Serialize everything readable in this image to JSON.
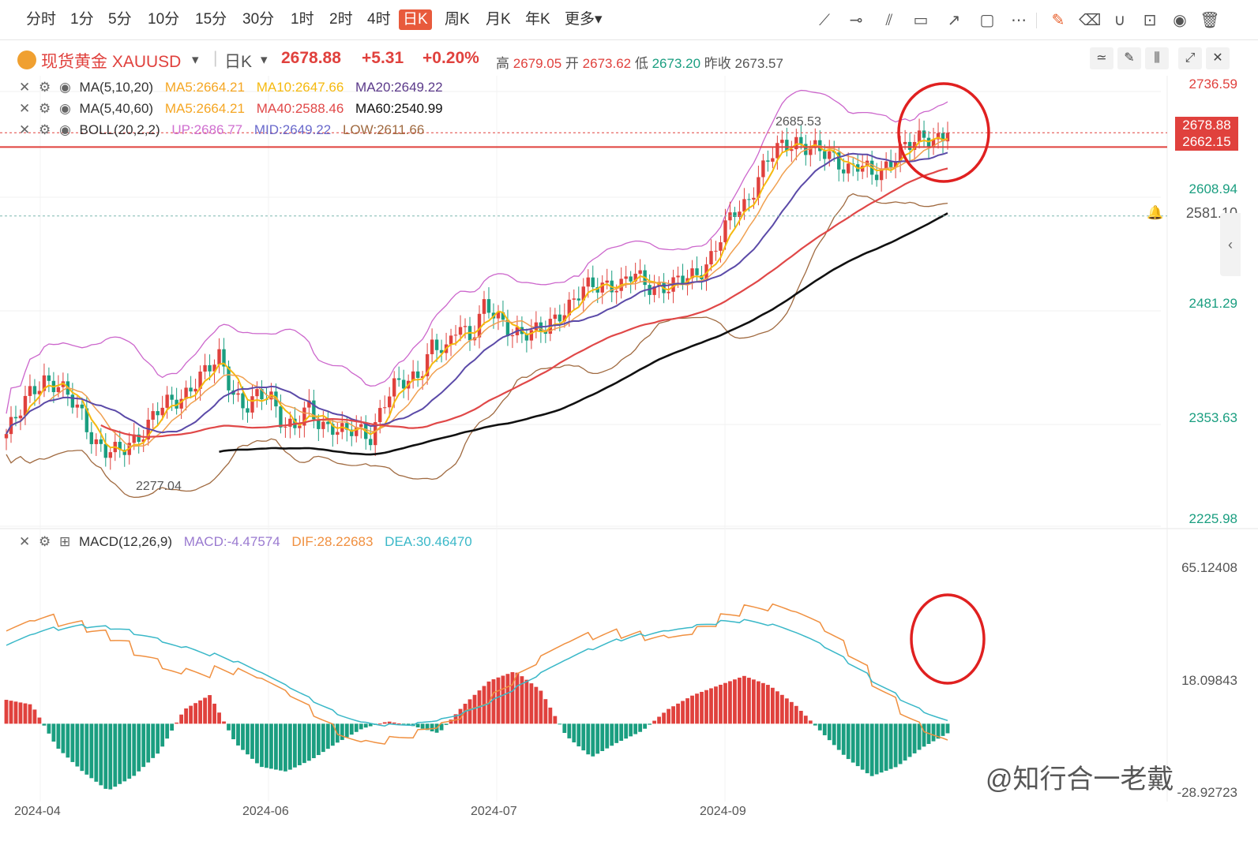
{
  "toolbar": {
    "timeframes": [
      "分时",
      "1分",
      "5分",
      "10分",
      "15分",
      "30分",
      "1时",
      "2时",
      "4时",
      "日K",
      "周K",
      "月K",
      "年K",
      "更多▾"
    ],
    "active_index": 9,
    "tools": [
      "trend-line-icon",
      "horizontal-line-icon",
      "parallel-line-icon",
      "rectangle-icon",
      "arrow-icon",
      "comment-icon",
      "more-dots-icon",
      "edit-icon",
      "eraser-icon",
      "magnet-icon",
      "lock-icon",
      "eye-icon",
      "trash-icon"
    ]
  },
  "symbol": {
    "name": "现货黄金 XAUUSD",
    "period": "日K",
    "price": "2678.88",
    "change": "+5.31",
    "change_pct": "+0.20%",
    "high_label": "高",
    "high": "2679.05",
    "open_label": "开",
    "open": "2673.62",
    "low_label": "低",
    "low": "2673.20",
    "prev_label": "昨收",
    "prev": "2673.57"
  },
  "indicators": {
    "ma1": {
      "name": "MA(5,10,20)",
      "v1": "MA5:2664.21",
      "v2": "MA10:2647.66",
      "v3": "MA20:2649.22"
    },
    "ma2": {
      "name": "MA(5,40,60)",
      "v1": "MA5:2664.21",
      "v2": "MA40:2588.46",
      "v3": "MA60:2540.99"
    },
    "boll": {
      "name": "BOLL(20,2,2)",
      "v1": "UP:2686.77",
      "v2": "MID:2649.22",
      "v3": "LOW:2611.66"
    },
    "macd": {
      "name": "MACD(12,26,9)",
      "v1": "MACD:-4.47574",
      "v2": "DIF:28.22683",
      "v3": "DEA:30.46470"
    }
  },
  "price_axis": [
    "2736.59",
    "2608.94",
    "2481.29",
    "2353.63",
    "2225.98"
  ],
  "price_tags": {
    "current": "2678.88",
    "line": "2662.15",
    "alert": "2581.10"
  },
  "annotations": {
    "high_mark": "2685.53",
    "low_mark": "2277.04"
  },
  "macd_axis": [
    "65.12408",
    "18.09843",
    "-28.92723"
  ],
  "x_axis": [
    "2024-04",
    "2024-06",
    "2024-07",
    "2024-09"
  ],
  "watermark": "@知行合一老戴",
  "colors": {
    "up": "#e0413d",
    "down": "#1a9e80",
    "ma5": "#f5b90f",
    "ma10": "#f0a050",
    "ma20": "#5b4aa8",
    "ma40": "#e04848",
    "ma60": "#111111",
    "boll_up": "#cc66cc",
    "boll_low": "#a06a40",
    "dif": "#f09040",
    "dea": "#3ab8c8"
  },
  "chart_data": {
    "type": "candlestick",
    "y_range": [
      2225.98,
      2736.59
    ],
    "macd_y_range": [
      -28.92723,
      65.12408
    ],
    "trend": [
      [
        2325,
        2345
      ],
      [
        2378,
        2392
      ],
      [
        2380,
        2365
      ],
      [
        2352,
        2318
      ],
      [
        2300,
        2302
      ],
      [
        2320,
        2330
      ],
      [
        2348,
        2362
      ],
      [
        2372,
        2385
      ],
      [
        2395,
        2418
      ],
      [
        2380,
        2352
      ],
      [
        2365,
        2375
      ],
      [
        2342,
        2328
      ],
      [
        2355,
        2340
      ],
      [
        2335,
        2322
      ],
      [
        2330,
        2325
      ],
      [
        2360,
        2378
      ],
      [
        2388,
        2402
      ],
      [
        2430,
        2415
      ],
      [
        2460,
        2440
      ],
      [
        2472,
        2460
      ],
      [
        2452,
        2445
      ],
      [
        2440,
        2448
      ],
      [
        2470,
        2478
      ],
      [
        2492,
        2500
      ],
      [
        2505,
        2498
      ],
      [
        2510,
        2502
      ],
      [
        2500,
        2496
      ],
      [
        2505,
        2516
      ],
      [
        2530,
        2555
      ],
      [
        2585,
        2600
      ],
      [
        2630,
        2650
      ],
      [
        2665,
        2672
      ],
      [
        2660,
        2652
      ],
      [
        2650,
        2640
      ],
      [
        2640,
        2625
      ],
      [
        2640,
        2660
      ],
      [
        2662,
        2670
      ],
      [
        2675,
        2679
      ]
    ],
    "macd_hist": [
      10,
      8,
      -10,
      -20,
      -28,
      -22,
      -12,
      6,
      12,
      -8,
      -18,
      -20,
      -15,
      -8,
      -2,
      1,
      -1,
      -4,
      8,
      18,
      22,
      14,
      -5,
      -14,
      -8,
      -3,
      6,
      12,
      16,
      20,
      16,
      8,
      -3,
      -14,
      -22,
      -18,
      -10,
      -4
    ],
    "dif_last": 28.22683,
    "dea_last": 30.4647
  }
}
